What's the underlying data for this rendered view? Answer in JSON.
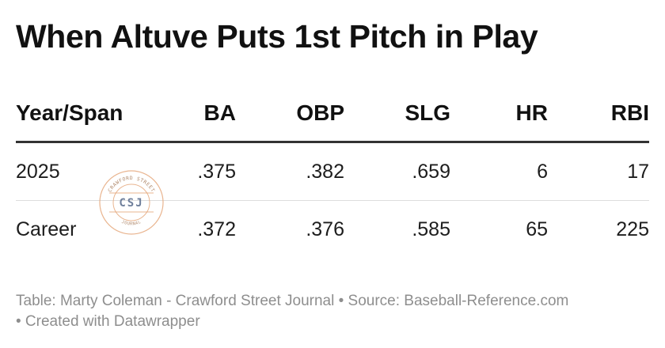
{
  "chart_data": {
    "type": "table",
    "title": "When Altuve Puts 1st Pitch in Play",
    "columns": [
      "Year/Span",
      "BA",
      "OBP",
      "SLG",
      "HR",
      "RBI"
    ],
    "rows": [
      [
        "2025",
        ".375",
        ".382",
        ".659",
        "6",
        "17"
      ],
      [
        "Career",
        ".372",
        ".376",
        ".585",
        "65",
        "225"
      ]
    ],
    "footer": "Table: Marty Coleman - Crawford Street Journal • Source: Baseball-Reference.com • Created with Datawrapper"
  },
  "watermark": {
    "logo_text": "CSJ",
    "ring_top_text": "CRAWFORD STREET",
    "ring_bottom_text": "JOURNAL",
    "color": "#e5a87c"
  }
}
